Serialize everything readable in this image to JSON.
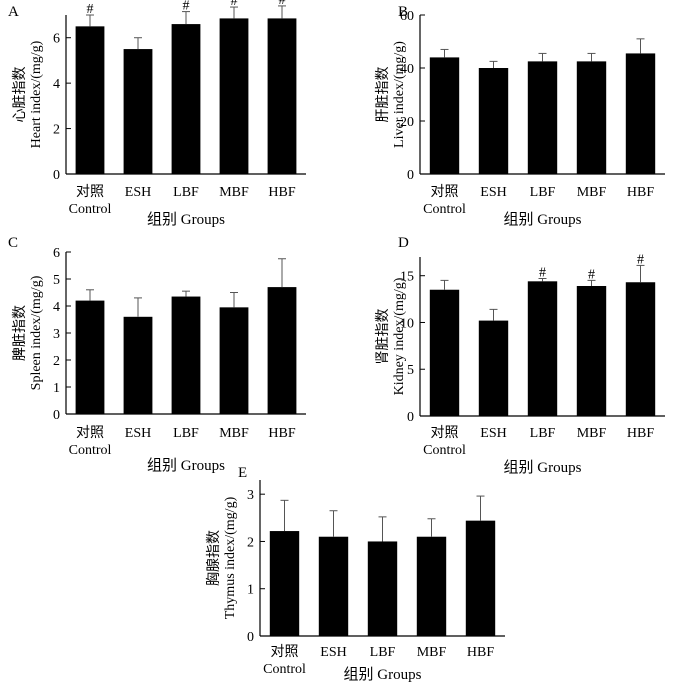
{
  "chart_data": [
    {
      "type": "bar",
      "panel_label": "A",
      "categories": [
        "对照\nControl",
        "ESH",
        "LBF",
        "MBF",
        "HBF"
      ],
      "values": [
        6.5,
        5.5,
        6.6,
        6.85,
        6.85
      ],
      "errors": [
        0.5,
        0.5,
        0.55,
        0.5,
        0.55
      ],
      "annotations": [
        "#",
        "",
        "#",
        "#",
        "#"
      ],
      "ylim": [
        0,
        7
      ],
      "yticks": [
        0,
        2,
        4,
        6
      ],
      "ylabel": "心脏指数\nHeart index/(mg/g)",
      "xlabel": "组别  Groups",
      "bar_color": "#000000"
    },
    {
      "type": "bar",
      "panel_label": "B",
      "categories": [
        "对照\nControl",
        "ESH",
        "LBF",
        "MBF",
        "HBF"
      ],
      "values": [
        44,
        40,
        42.5,
        42.5,
        45.5
      ],
      "errors": [
        3,
        2.5,
        3,
        3,
        5.5
      ],
      "annotations": [
        "",
        "",
        "",
        "",
        ""
      ],
      "ylim": [
        0,
        60
      ],
      "yticks": [
        0,
        20,
        40,
        60
      ],
      "ylabel": "肝脏指数\nLiver index/(mg/g)",
      "xlabel": "组别  Groups",
      "bar_color": "#000000"
    },
    {
      "type": "bar",
      "panel_label": "C",
      "categories": [
        "对照\nControl",
        "ESH",
        "LBF",
        "MBF",
        "HBF"
      ],
      "values": [
        4.2,
        3.6,
        4.35,
        3.95,
        4.7
      ],
      "errors": [
        0.4,
        0.7,
        0.2,
        0.55,
        1.05
      ],
      "annotations": [
        "",
        "",
        "",
        "",
        ""
      ],
      "ylim": [
        0,
        6
      ],
      "yticks": [
        0,
        1,
        2,
        3,
        4,
        5,
        6
      ],
      "ylabel": "脾脏指数\nSpleen index/(mg/g)",
      "xlabel": "组别  Groups",
      "bar_color": "#000000"
    },
    {
      "type": "bar",
      "panel_label": "D",
      "categories": [
        "对照\nControl",
        "ESH",
        "LBF",
        "MBF",
        "HBF"
      ],
      "values": [
        13.5,
        10.2,
        14.4,
        13.9,
        14.3
      ],
      "errors": [
        1.0,
        1.2,
        0.3,
        0.6,
        1.8
      ],
      "annotations": [
        "",
        "",
        "#",
        "#",
        "#"
      ],
      "ylim": [
        0,
        17
      ],
      "yticks": [
        0,
        5,
        10,
        15
      ],
      "ylabel": "肾脏指数\nKidney index/(mg/g)",
      "xlabel": "组别  Groups",
      "bar_color": "#000000"
    },
    {
      "type": "bar",
      "panel_label": "E",
      "categories": [
        "对照\nControl",
        "ESH",
        "LBF",
        "MBF",
        "HBF"
      ],
      "values": [
        2.22,
        2.1,
        2.0,
        2.1,
        2.44
      ],
      "errors": [
        0.65,
        0.55,
        0.52,
        0.38,
        0.52
      ],
      "annotations": [
        "",
        "",
        "",
        "",
        ""
      ],
      "ylim": [
        0,
        3.3
      ],
      "yticks": [
        0,
        1,
        2,
        3
      ],
      "ylabel": "胸腺指数\nThymus index/(mg/g)",
      "xlabel": "组别  Groups",
      "bar_color": "#000000"
    }
  ]
}
